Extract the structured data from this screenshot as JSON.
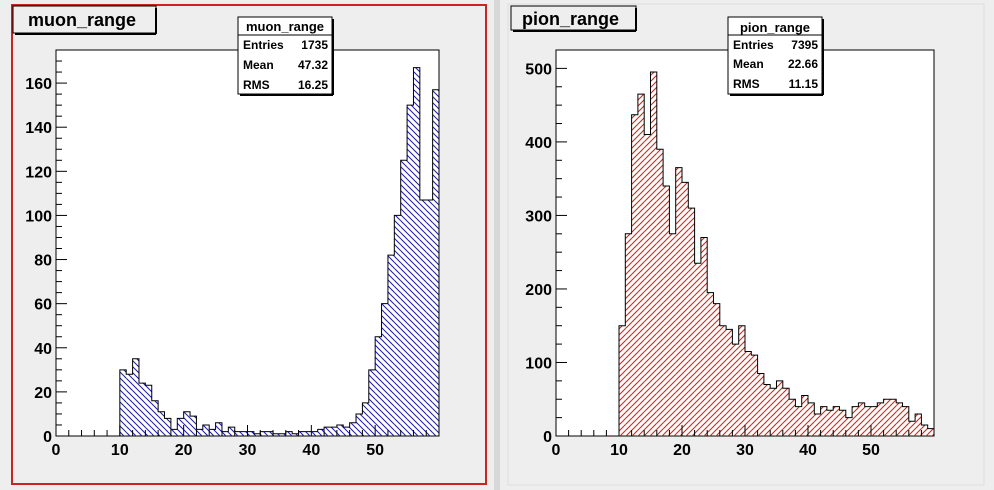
{
  "chart_data": [
    {
      "type": "bar",
      "title": "muon_range",
      "xlim": [
        0,
        60
      ],
      "ylim": [
        0,
        175
      ],
      "bin_width": 1,
      "x_ticks": [
        0,
        10,
        20,
        30,
        40,
        50
      ],
      "y_ticks": [
        0,
        20,
        40,
        60,
        80,
        100,
        120,
        140,
        160
      ],
      "fill_color": "#1a1aa6",
      "stats": {
        "title": "muon_range",
        "rows": [
          {
            "label": "Entries",
            "value": "1735"
          },
          {
            "label": "Mean",
            "value": "47.32"
          },
          {
            "label": "RMS",
            "value": "16.25"
          }
        ]
      },
      "values": [
        0,
        0,
        0,
        0,
        0,
        0,
        0,
        0,
        0,
        0,
        30,
        28,
        35,
        24,
        23,
        16,
        11,
        8,
        3,
        8,
        11,
        9,
        3,
        5,
        3,
        6,
        2,
        4,
        2,
        2,
        2,
        1,
        2,
        2,
        1,
        1,
        2,
        1,
        2,
        2,
        2,
        3,
        4,
        4,
        5,
        4,
        6,
        10,
        15,
        30,
        45,
        60,
        82,
        100,
        125,
        150,
        167,
        107,
        107,
        157
      ]
    },
    {
      "type": "bar",
      "title": "pion_range",
      "xlim": [
        0,
        60
      ],
      "ylim": [
        0,
        525
      ],
      "bin_width": 1,
      "x_ticks": [
        0,
        10,
        20,
        30,
        40,
        50
      ],
      "y_ticks": [
        0,
        100,
        200,
        300,
        400,
        500
      ],
      "fill_color": "#d02020",
      "stats": {
        "title": "pion_range",
        "rows": [
          {
            "label": "Entries",
            "value": "7395"
          },
          {
            "label": "Mean",
            "value": "22.66"
          },
          {
            "label": "RMS",
            "value": "11.15"
          }
        ]
      },
      "values": [
        0,
        0,
        0,
        0,
        0,
        0,
        0,
        0,
        0,
        0,
        150,
        275,
        437,
        465,
        410,
        495,
        390,
        340,
        275,
        365,
        345,
        310,
        235,
        270,
        195,
        180,
        150,
        145,
        125,
        150,
        115,
        110,
        85,
        70,
        65,
        75,
        65,
        50,
        40,
        55,
        45,
        30,
        40,
        35,
        40,
        35,
        25,
        40,
        45,
        40,
        40,
        45,
        50,
        50,
        45,
        40,
        20,
        30,
        15,
        10
      ]
    }
  ]
}
